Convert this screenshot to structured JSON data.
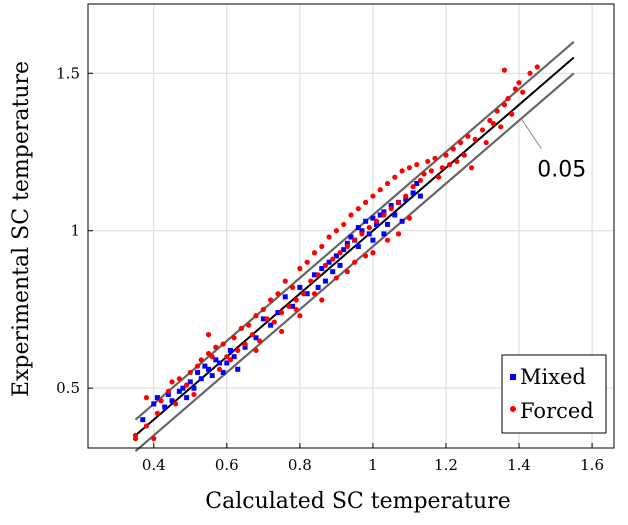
{
  "chart_data": {
    "type": "scatter",
    "title": "",
    "xlabel": "Calculated SC temperature",
    "ylabel": "Experimental SC temperature",
    "xlim": [
      0.22,
      1.66
    ],
    "ylim": [
      0.31,
      1.72
    ],
    "xticks": [
      "0.4",
      "0.6",
      "0.8",
      "1",
      "1.2",
      "1.4",
      "1.6"
    ],
    "yticks": [
      "0.5",
      "1",
      "1.5"
    ],
    "grid": true,
    "legend_position": "bottom-right",
    "reference_lines": {
      "center": {
        "x": [
          0.35,
          1.55
        ],
        "y": [
          0.35,
          1.55
        ],
        "color": "#000000"
      },
      "upper": {
        "x": [
          0.35,
          1.55
        ],
        "y": [
          0.4,
          1.6
        ],
        "color": "#666666"
      },
      "lower": {
        "x": [
          0.35,
          1.55
        ],
        "y": [
          0.3,
          1.5
        ],
        "color": "#666666"
      },
      "annotation": "0.05"
    },
    "series": [
      {
        "name": "Mixed",
        "marker": "square",
        "color": "#0000ff",
        "points": [
          [
            0.37,
            0.4
          ],
          [
            0.4,
            0.45
          ],
          [
            0.41,
            0.47
          ],
          [
            0.43,
            0.44
          ],
          [
            0.44,
            0.48
          ],
          [
            0.45,
            0.46
          ],
          [
            0.47,
            0.49
          ],
          [
            0.48,
            0.5
          ],
          [
            0.49,
            0.47
          ],
          [
            0.5,
            0.52
          ],
          [
            0.51,
            0.5
          ],
          [
            0.52,
            0.55
          ],
          [
            0.53,
            0.53
          ],
          [
            0.54,
            0.57
          ],
          [
            0.55,
            0.56
          ],
          [
            0.56,
            0.54
          ],
          [
            0.57,
            0.59
          ],
          [
            0.58,
            0.58
          ],
          [
            0.59,
            0.55
          ],
          [
            0.6,
            0.58
          ],
          [
            0.61,
            0.62
          ],
          [
            0.62,
            0.6
          ],
          [
            0.63,
            0.56
          ],
          [
            0.65,
            0.63
          ],
          [
            0.68,
            0.66
          ],
          [
            0.7,
            0.72
          ],
          [
            0.72,
            0.7
          ],
          [
            0.74,
            0.74
          ],
          [
            0.76,
            0.79
          ],
          [
            0.78,
            0.76
          ],
          [
            0.8,
            0.82
          ],
          [
            0.82,
            0.8
          ],
          [
            0.84,
            0.86
          ],
          [
            0.85,
            0.82
          ],
          [
            0.86,
            0.88
          ],
          [
            0.88,
            0.9
          ],
          [
            0.89,
            0.87
          ],
          [
            0.9,
            0.92
          ],
          [
            0.92,
            0.94
          ],
          [
            0.93,
            0.96
          ],
          [
            0.94,
            0.98
          ],
          [
            0.95,
            0.97
          ],
          [
            0.96,
            1.01
          ],
          [
            0.97,
            1.0
          ],
          [
            0.98,
            1.03
          ],
          [
            0.99,
            0.99
          ],
          [
            1.0,
            1.04
          ],
          [
            1.01,
            1.02
          ],
          [
            1.02,
            1.05
          ],
          [
            1.03,
            1.06
          ],
          [
            1.04,
            1.02
          ],
          [
            1.05,
            1.08
          ],
          [
            1.06,
            1.05
          ],
          [
            1.07,
            1.09
          ],
          [
            1.08,
            1.03
          ],
          [
            1.09,
            1.1
          ],
          [
            1.11,
            1.12
          ],
          [
            1.12,
            1.15
          ],
          [
            1.13,
            1.11
          ],
          [
            0.96,
            0.95
          ],
          [
            1.0,
            0.97
          ],
          [
            1.03,
            0.99
          ],
          [
            0.91,
            0.89
          ],
          [
            0.87,
            0.84
          ]
        ]
      },
      {
        "name": "Forced",
        "marker": "circle",
        "color": "#ff0000",
        "points": [
          [
            0.35,
            0.34
          ],
          [
            0.35,
            0.35
          ],
          [
            0.38,
            0.38
          ],
          [
            0.4,
            0.34
          ],
          [
            0.41,
            0.42
          ],
          [
            0.42,
            0.46
          ],
          [
            0.44,
            0.49
          ],
          [
            0.46,
            0.45
          ],
          [
            0.47,
            0.53
          ],
          [
            0.49,
            0.51
          ],
          [
            0.5,
            0.55
          ],
          [
            0.51,
            0.48
          ],
          [
            0.52,
            0.57
          ],
          [
            0.53,
            0.59
          ],
          [
            0.55,
            0.61
          ],
          [
            0.56,
            0.6
          ],
          [
            0.57,
            0.63
          ],
          [
            0.58,
            0.56
          ],
          [
            0.59,
            0.64
          ],
          [
            0.6,
            0.6
          ],
          [
            0.61,
            0.59
          ],
          [
            0.62,
            0.66
          ],
          [
            0.63,
            0.62
          ],
          [
            0.64,
            0.69
          ],
          [
            0.65,
            0.64
          ],
          [
            0.66,
            0.7
          ],
          [
            0.67,
            0.67
          ],
          [
            0.68,
            0.73
          ],
          [
            0.69,
            0.65
          ],
          [
            0.7,
            0.75
          ],
          [
            0.71,
            0.72
          ],
          [
            0.72,
            0.78
          ],
          [
            0.73,
            0.71
          ],
          [
            0.74,
            0.8
          ],
          [
            0.75,
            0.74
          ],
          [
            0.76,
            0.84
          ],
          [
            0.77,
            0.76
          ],
          [
            0.78,
            0.82
          ],
          [
            0.79,
            0.78
          ],
          [
            0.8,
            0.88
          ],
          [
            0.81,
            0.8
          ],
          [
            0.82,
            0.9
          ],
          [
            0.83,
            0.84
          ],
          [
            0.84,
            0.93
          ],
          [
            0.85,
            0.86
          ],
          [
            0.86,
            0.95
          ],
          [
            0.87,
            0.89
          ],
          [
            0.88,
            0.98
          ],
          [
            0.89,
            0.91
          ],
          [
            0.9,
            1.0
          ],
          [
            0.91,
            0.93
          ],
          [
            0.92,
            1.02
          ],
          [
            0.93,
            0.95
          ],
          [
            0.94,
            1.05
          ],
          [
            0.95,
            0.97
          ],
          [
            0.96,
            1.07
          ],
          [
            0.97,
            0.99
          ],
          [
            0.98,
            1.09
          ],
          [
            0.99,
            1.01
          ],
          [
            1.0,
            1.11
          ],
          [
            1.01,
            1.03
          ],
          [
            1.02,
            1.13
          ],
          [
            1.03,
            1.05
          ],
          [
            1.04,
            1.15
          ],
          [
            1.05,
            1.07
          ],
          [
            1.06,
            1.17
          ],
          [
            1.07,
            1.09
          ],
          [
            1.08,
            1.19
          ],
          [
            1.09,
            1.11
          ],
          [
            1.1,
            1.2
          ],
          [
            1.11,
            1.14
          ],
          [
            1.12,
            1.21
          ],
          [
            1.13,
            1.16
          ],
          [
            1.14,
            1.18
          ],
          [
            1.15,
            1.22
          ],
          [
            1.16,
            1.19
          ],
          [
            1.17,
            1.23
          ],
          [
            1.18,
            1.17
          ],
          [
            1.19,
            1.2
          ],
          [
            1.2,
            1.24
          ],
          [
            1.21,
            1.21
          ],
          [
            1.22,
            1.26
          ],
          [
            1.23,
            1.22
          ],
          [
            1.24,
            1.28
          ],
          [
            1.25,
            1.24
          ],
          [
            1.26,
            1.3
          ],
          [
            1.27,
            1.2
          ],
          [
            1.28,
            1.29
          ],
          [
            1.3,
            1.32
          ],
          [
            1.31,
            1.28
          ],
          [
            1.32,
            1.35
          ],
          [
            1.33,
            1.34
          ],
          [
            1.34,
            1.38
          ],
          [
            1.35,
            1.33
          ],
          [
            1.36,
            1.4
          ],
          [
            1.37,
            1.42
          ],
          [
            1.38,
            1.37
          ],
          [
            1.39,
            1.45
          ],
          [
            1.4,
            1.47
          ],
          [
            1.41,
            1.44
          ],
          [
            1.43,
            1.5
          ],
          [
            1.45,
            1.52
          ],
          [
            1.36,
            1.51
          ],
          [
            0.38,
            0.47
          ],
          [
            0.45,
            0.52
          ],
          [
            0.55,
            0.67
          ],
          [
            0.68,
            0.62
          ],
          [
            0.75,
            0.68
          ],
          [
            0.8,
            0.73
          ],
          [
            0.86,
            0.78
          ],
          [
            0.93,
            0.87
          ],
          [
            0.98,
            0.92
          ],
          [
            1.04,
            0.97
          ],
          [
            1.07,
            0.99
          ],
          [
            1.1,
            1.04
          ],
          [
            1.0,
            0.93
          ],
          [
            0.95,
            0.9
          ],
          [
            0.9,
            0.85
          ],
          [
            0.84,
            0.8
          ],
          [
            0.79,
            0.75
          ]
        ]
      }
    ]
  }
}
